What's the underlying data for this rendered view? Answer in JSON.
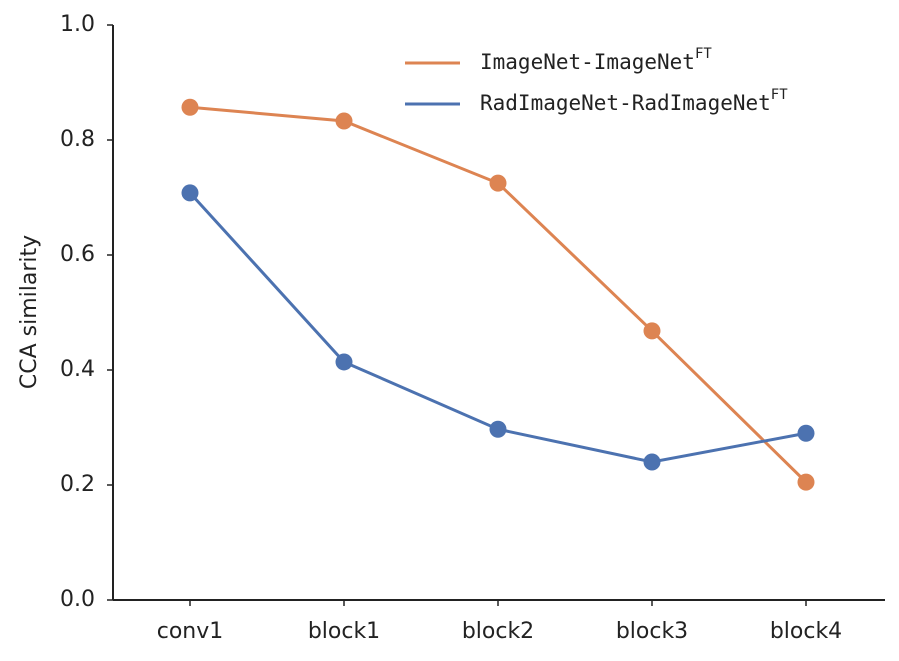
{
  "chart_data": {
    "type": "line",
    "ylabel": "CCA similarity",
    "categories": [
      "conv1",
      "block1",
      "block2",
      "block3",
      "block4"
    ],
    "series": [
      {
        "name": "ImageNet-ImageNet",
        "name_superscript": "FT",
        "color": "#dd8452",
        "values": [
          0.857,
          0.833,
          0.725,
          0.468,
          0.205
        ]
      },
      {
        "name": "RadImageNet-RadImageNet",
        "name_superscript": "FT",
        "color": "#4c72b0",
        "values": [
          0.708,
          0.414,
          0.297,
          0.24,
          0.29
        ]
      }
    ],
    "ylim": [
      0,
      1
    ],
    "yticks": [
      {
        "value": 0,
        "label": "0.0"
      },
      0.2,
      0.4,
      0.6,
      0.8,
      {
        "value": 1,
        "label": "1.0"
      }
    ],
    "legend": "upper right"
  }
}
